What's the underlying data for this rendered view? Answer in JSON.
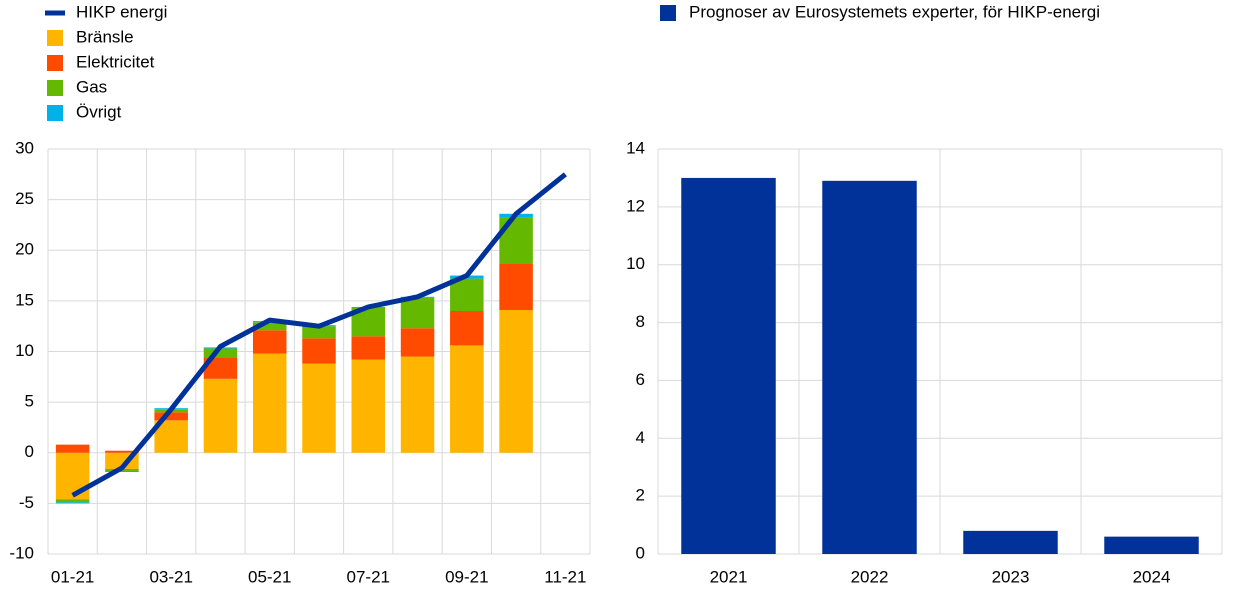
{
  "chart_data": [
    {
      "type": "bar",
      "stacked": true,
      "grid": true,
      "categories": [
        "01-21",
        null,
        "03-21",
        null,
        "05-21",
        null,
        "07-21",
        null,
        "09-21",
        null,
        "11-21"
      ],
      "ylim": [
        -10,
        30
      ],
      "yticks": [
        -10,
        -5,
        0,
        5,
        10,
        15,
        20,
        25,
        30
      ],
      "series": [
        {
          "name": "HIKP energi",
          "type": "line",
          "color": "#003299",
          "values": [
            -4.2,
            -1.5,
            4.3,
            10.5,
            13.1,
            12.5,
            14.4,
            15.4,
            17.5,
            23.6,
            27.5
          ]
        },
        {
          "name": "Bränsle",
          "color": "#ffb400",
          "values": [
            -4.6,
            -1.6,
            3.2,
            7.3,
            9.8,
            8.8,
            9.2,
            9.5,
            10.6,
            14.1,
            null
          ]
        },
        {
          "name": "Elektricitet",
          "color": "#ff4b00",
          "values": [
            0.8,
            0.2,
            0.8,
            2.1,
            2.3,
            2.5,
            2.3,
            2.8,
            3.4,
            4.6,
            null
          ]
        },
        {
          "name": "Gas",
          "color": "#65b800",
          "values": [
            -0.3,
            -0.2,
            0.3,
            0.9,
            0.8,
            1.2,
            2.8,
            3.0,
            3.2,
            4.5,
            null
          ]
        },
        {
          "name": "Övrigt",
          "color": "#00b1ea",
          "values": [
            -0.1,
            -0.1,
            0.1,
            0.1,
            0.1,
            0.1,
            0.1,
            0.1,
            0.3,
            0.4,
            null
          ]
        }
      ]
    },
    {
      "type": "bar",
      "stacked": false,
      "grid": true,
      "categories": [
        "2021",
        "2022",
        "2023",
        "2024"
      ],
      "ylim": [
        0,
        14
      ],
      "yticks": [
        0,
        2,
        4,
        6,
        8,
        10,
        12,
        14
      ],
      "series": [
        {
          "name": "Prognoser av Eurosystemets experter, för HIKP-energi",
          "color": "#003299",
          "values": [
            13.0,
            12.9,
            0.8,
            0.6
          ]
        }
      ]
    }
  ]
}
